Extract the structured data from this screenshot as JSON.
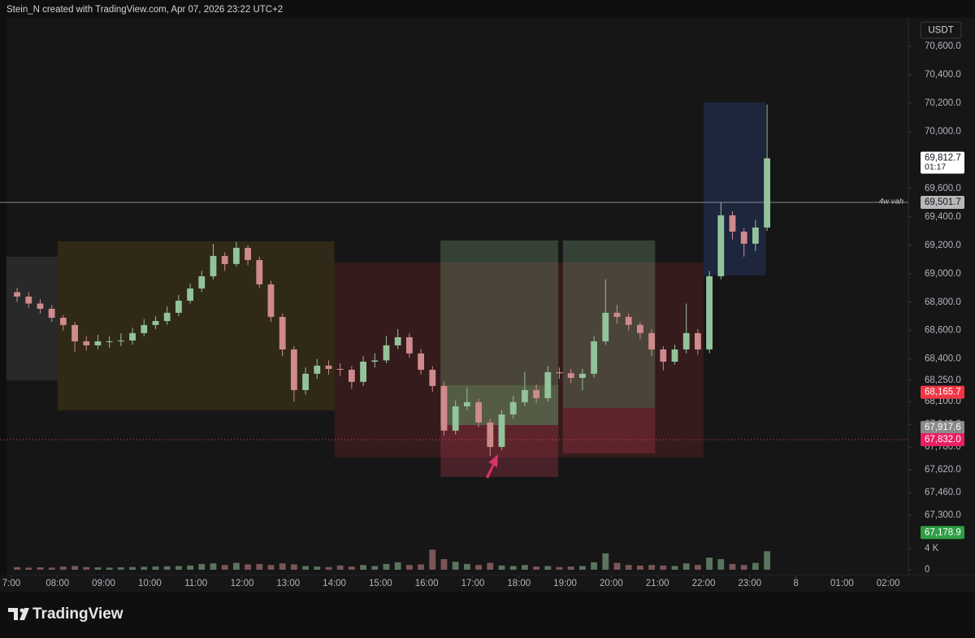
{
  "chart_data": {
    "type": "candlestick",
    "header": "Stein_N created with TradingView.com, Apr 07, 2026 23:22 UTC+2",
    "currency": "USDT",
    "brand": "TradingView",
    "up_color": "#93c39a",
    "down_color": "#cf8a8c",
    "x": [
      7,
      7.25,
      7.5,
      7.75,
      8,
      8.25,
      8.5,
      8.75,
      9,
      9.25,
      9.5,
      9.75,
      10,
      10.25,
      10.5,
      10.75,
      11,
      11.25,
      11.5,
      11.75,
      12,
      12.25,
      12.5,
      12.75,
      13,
      13.25,
      13.5,
      13.75,
      14,
      14.25,
      14.5,
      14.75,
      15,
      15.25,
      15.5,
      15.75,
      16,
      16.25,
      16.5,
      16.75,
      17,
      17.25,
      17.5,
      17.75,
      18,
      18.25,
      18.5,
      18.75,
      19,
      19.25,
      19.5,
      19.75,
      20,
      20.25,
      20.5,
      20.75,
      21,
      21.25,
      21.5,
      21.75,
      22,
      22.25,
      22.5,
      22.75,
      23,
      23.25
    ],
    "open": [
      68870,
      68839,
      68790,
      68753,
      68690,
      68639,
      68524,
      68496,
      68524,
      68524,
      68530,
      68582,
      68639,
      68667,
      68725,
      68810,
      68896,
      68982,
      69125,
      69068,
      69182,
      69096,
      68925,
      68696,
      68467,
      68181,
      68296,
      68353,
      68330,
      68324,
      68239,
      68381,
      68390,
      68496,
      68553,
      68439,
      68324,
      68210,
      67896,
      68067,
      68096,
      67953,
      67781,
      68010,
      68096,
      68181,
      68124,
      68307,
      68300,
      68267,
      68296,
      68524,
      68725,
      68696,
      68640,
      68582,
      68467,
      68381,
      68467,
      68582,
      68467,
      68982,
      69411,
      69296,
      69211,
      69325
    ],
    "high": [
      68900,
      68870,
      68820,
      68780,
      68710,
      68660,
      68560,
      68570,
      68560,
      68580,
      68620,
      68680,
      68700,
      68770,
      68850,
      68930,
      69020,
      69210,
      69150,
      69225,
      69200,
      69120,
      68950,
      68720,
      68490,
      68340,
      68400,
      68390,
      68370,
      68350,
      68420,
      68440,
      68560,
      68610,
      68580,
      68470,
      68350,
      68240,
      68110,
      68200,
      68120,
      67980,
      68040,
      68140,
      68310,
      68220,
      68350,
      68340,
      68330,
      68330,
      68560,
      68960,
      68780,
      68720,
      68660,
      68610,
      68490,
      68500,
      68790,
      68610,
      69020,
      69500,
      69440,
      69320,
      69380,
      70190
    ],
    "low": [
      68800,
      68760,
      68720,
      68660,
      68600,
      68450,
      68460,
      68470,
      68480,
      68490,
      68500,
      68560,
      68610,
      68640,
      68700,
      68790,
      68870,
      68960,
      69020,
      69050,
      69060,
      68900,
      68660,
      68420,
      68100,
      68150,
      68260,
      68290,
      68280,
      68190,
      68210,
      68340,
      68370,
      68470,
      68410,
      68290,
      68170,
      67860,
      67870,
      68040,
      67920,
      67720,
      67760,
      67980,
      68070,
      68090,
      68100,
      68260,
      68230,
      68180,
      68270,
      68500,
      68650,
      68600,
      68540,
      68420,
      68320,
      68360,
      68440,
      68430,
      68440,
      68960,
      69240,
      69120,
      69160,
      69300
    ],
    "close": [
      68839,
      68790,
      68753,
      68690,
      68639,
      68524,
      68496,
      68524,
      68524,
      68530,
      68582,
      68639,
      68667,
      68725,
      68810,
      68896,
      68982,
      69125,
      69068,
      69182,
      69096,
      68925,
      68696,
      68467,
      68181,
      68296,
      68353,
      68330,
      68324,
      68239,
      68381,
      68390,
      68496,
      68553,
      68439,
      68324,
      68210,
      67896,
      68067,
      68096,
      67953,
      67781,
      68010,
      68096,
      68181,
      68124,
      68307,
      68300,
      68267,
      68296,
      68524,
      68725,
      68696,
      68640,
      68582,
      68467,
      68381,
      68467,
      68582,
      68467,
      68982,
      69411,
      69296,
      69211,
      69325,
      69812
    ],
    "volume": [
      500,
      400,
      450,
      400,
      600,
      700,
      500,
      450,
      400,
      450,
      500,
      550,
      600,
      650,
      700,
      800,
      1100,
      1200,
      900,
      1300,
      1000,
      1100,
      900,
      1200,
      1000,
      700,
      600,
      500,
      800,
      600,
      900,
      700,
      1100,
      1400,
      900,
      1000,
      3800,
      2000,
      1500,
      1100,
      900,
      1300,
      800,
      700,
      900,
      600,
      700,
      500,
      600,
      700,
      1400,
      3100,
      1300,
      900,
      800,
      900,
      800,
      700,
      1200,
      900,
      2300,
      2000,
      1100,
      900,
      1300,
      3500
    ],
    "xlim": [
      6.754,
      26.437
    ],
    "xticks": [
      {
        "value": 7,
        "label": "7:00"
      },
      {
        "value": 8,
        "label": "08:00"
      },
      {
        "value": 9,
        "label": "09:00"
      },
      {
        "value": 10,
        "label": "10:00"
      },
      {
        "value": 11,
        "label": "11:00"
      },
      {
        "value": 12,
        "label": "12:00"
      },
      {
        "value": 13,
        "label": "13:00"
      },
      {
        "value": 14,
        "label": "14:00"
      },
      {
        "value": 15,
        "label": "15:00"
      },
      {
        "value": 16,
        "label": "16:00"
      },
      {
        "value": 17,
        "label": "17:00"
      },
      {
        "value": 18,
        "label": "18:00"
      },
      {
        "value": 19,
        "label": "19:00"
      },
      {
        "value": 20,
        "label": "20:00"
      },
      {
        "value": 21,
        "label": "21:00"
      },
      {
        "value": 22,
        "label": "22:00"
      },
      {
        "value": 23,
        "label": "23:00"
      },
      {
        "value": 24,
        "label": "8"
      },
      {
        "value": 25,
        "label": "01:00"
      },
      {
        "value": 26,
        "label": "02:00"
      }
    ],
    "ylim": [
      66940,
      70800
    ],
    "yticks": [
      {
        "value": 70600,
        "label": "70,600.0"
      },
      {
        "value": 70400,
        "label": "70,400.0"
      },
      {
        "value": 70200,
        "label": "70,200.0"
      },
      {
        "value": 70000,
        "label": "70,000.0"
      },
      {
        "value": 69600,
        "label": "69,600.0"
      },
      {
        "value": 69400,
        "label": "69,400.0"
      },
      {
        "value": 69200,
        "label": "69,200.0"
      },
      {
        "value": 69000,
        "label": "69,000.0"
      },
      {
        "value": 68800,
        "label": "68,800.0"
      },
      {
        "value": 68600,
        "label": "68,600.0"
      },
      {
        "value": 68400,
        "label": "68,400.0"
      },
      {
        "value": 68250,
        "label": "68,250.0"
      },
      {
        "value": 68100,
        "label": "68,100.0"
      },
      {
        "value": 67940,
        "label": "67,940.0"
      },
      {
        "value": 67780,
        "label": "67,780.0"
      },
      {
        "value": 67620,
        "label": "67,620.0"
      },
      {
        "value": 67460,
        "label": "67,460.0"
      },
      {
        "value": 67300,
        "label": "67,300.0"
      }
    ],
    "volume_ylim": [
      0,
      4000
    ],
    "volume_ticks": [
      {
        "value": 4000,
        "label": "4 K"
      },
      0
    ],
    "zones": [
      {
        "color": "rgba(110,110,110,0.22)",
        "x": [
          6.89,
          8
        ],
        "y": [
          68250,
          69119
        ]
      },
      {
        "color": "rgba(120,95,30,0.28)",
        "x": [
          8,
          14
        ],
        "y": [
          68039,
          69228
        ]
      },
      {
        "color": "rgba(120,40,40,0.32)",
        "x": [
          14,
          22
        ],
        "y": [
          67707,
          69079
        ]
      },
      {
        "color": "rgba(120,160,120,0.32)",
        "x": [
          16.3,
          18.85
        ],
        "y": [
          68216,
          69234
        ]
      },
      {
        "color": "rgba(140,200,140,0.38)",
        "x": [
          16.3,
          18.85
        ],
        "y": [
          67935,
          68216
        ]
      },
      {
        "color": "rgba(190,60,85,0.3)",
        "x": [
          16.3,
          18.85
        ],
        "y": [
          67570,
          67935
        ]
      },
      {
        "color": "rgba(120,160,120,0.32)",
        "x": [
          18.95,
          20.95
        ],
        "y": [
          68056,
          69234
        ]
      },
      {
        "color": "rgba(190,60,85,0.3)",
        "x": [
          18.95,
          20.95
        ],
        "y": [
          67736,
          68056
        ]
      },
      {
        "color": "rgba(45,65,130,0.38)",
        "x": [
          22,
          23.35
        ],
        "y": [
          68988,
          70205
        ]
      }
    ],
    "price_labels": [
      {
        "value": 69812.7,
        "label": "69,812.7",
        "countdown": "01:17",
        "color": "#ffffff",
        "text_color": "#131722"
      },
      {
        "value": 69501.7,
        "label": "69,501.7",
        "note": "4w vah",
        "line": "solid",
        "line_color": "#8a8a8a",
        "color": "#b8b8b8",
        "text_color": "#131722"
      },
      {
        "value": 68165.7,
        "label": "68,165.7",
        "color": "#f23645",
        "text_color": "#ffffff"
      },
      {
        "value": 67917.6,
        "label": "67,917.6",
        "color": "#8a8a8a",
        "text_color": "#ffffff"
      },
      {
        "value": 67832,
        "label": "67,832.0",
        "line": "dotted",
        "line_color": "#d9486a",
        "color": "#e91e63",
        "text_color": "#ffffff"
      },
      {
        "value": 67178.9,
        "label": "67,178.9",
        "color": "#2f9e44",
        "text_color": "#ffffff"
      }
    ]
  }
}
